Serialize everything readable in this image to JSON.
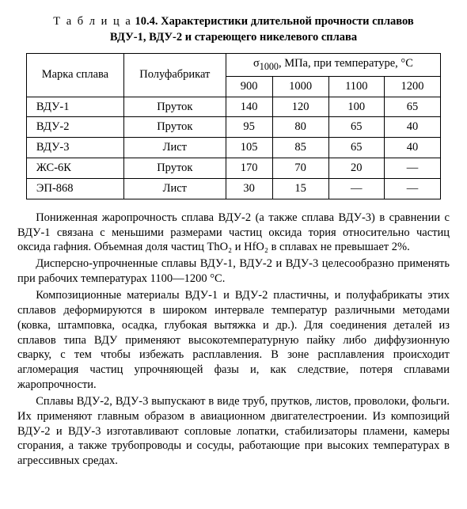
{
  "caption": {
    "label": "Т а б л и ц а",
    "number": "10.4.",
    "title_line1": "Характеристики длительной прочности сплавов",
    "title_line2": "ВДУ-1, ВДУ-2 и стареющего никелевого сплава"
  },
  "table": {
    "col_alloy": "Марка сплава",
    "col_semi": "Полуфабрикат",
    "sigma_label_html": "σ<sub>1000</sub>, МПа, при температуре, °С",
    "temps": [
      "900",
      "1000",
      "1100",
      "1200"
    ],
    "rows": [
      {
        "alloy": "ВДУ-1",
        "semi": "Пруток",
        "v": [
          "140",
          "120",
          "100",
          "65"
        ]
      },
      {
        "alloy": "ВДУ-2",
        "semi": "Пруток",
        "v": [
          "95",
          "80",
          "65",
          "40"
        ]
      },
      {
        "alloy": "ВДУ-3",
        "semi": "Лист",
        "v": [
          "105",
          "85",
          "65",
          "40"
        ]
      },
      {
        "alloy": "ЖС-6К",
        "semi": "Пруток",
        "v": [
          "170",
          "70",
          "20",
          "—"
        ]
      },
      {
        "alloy": "ЭП-868",
        "semi": "Лист",
        "v": [
          "30",
          "15",
          "—",
          "—"
        ]
      }
    ],
    "styling": {
      "border_color": "#000000",
      "font_family": "Times New Roman",
      "header_rowspan_cols": 2,
      "temp_colspan": 4
    }
  },
  "paragraphs": [
    "Пониженная жаропрочность сплава ВДУ-2 (а также сплава ВДУ-3) в сравнении с ВДУ-1 связана с меньшими размерами частиц оксида тория относительно частиц оксида гафния. Объемная доля частиц ThO₂ и HfO₂ в сплавах не превышает 2%.",
    "Дисперсно-упрочненные сплавы ВДУ-1, ВДУ-2 и ВДУ-3 целесообразно применять при рабочих температурах 1100—1200 °С.",
    "Композиционные материалы ВДУ-1 и ВДУ-2 пластичны, и полуфабрикаты этих сплавов деформируются в широком интервале температур различными методами (ковка, штамповка, осадка, глубокая вытяжка и др.). Для соединения деталей из сплавов типа ВДУ применяют высокотемпературную пайку либо диффузионную сварку, с тем чтобы избежать расплавления. В зоне расплавления происходит агломерация частиц упрочняющей фазы и, как следствие, потеря сплавами жаропрочности.",
    "Сплавы ВДУ-2, ВДУ-3 выпускают в виде труб, прутков, листов, проволоки, фольги. Их применяют главным образом в авиационном двигателестроении. Из композиций ВДУ-2 и ВДУ-3 изготавливают сопловые лопатки, стабилизаторы пламени, камеры сгорания, а также трубопроводы и сосуды, работающие при высоких температурах в агрессивных средах."
  ]
}
